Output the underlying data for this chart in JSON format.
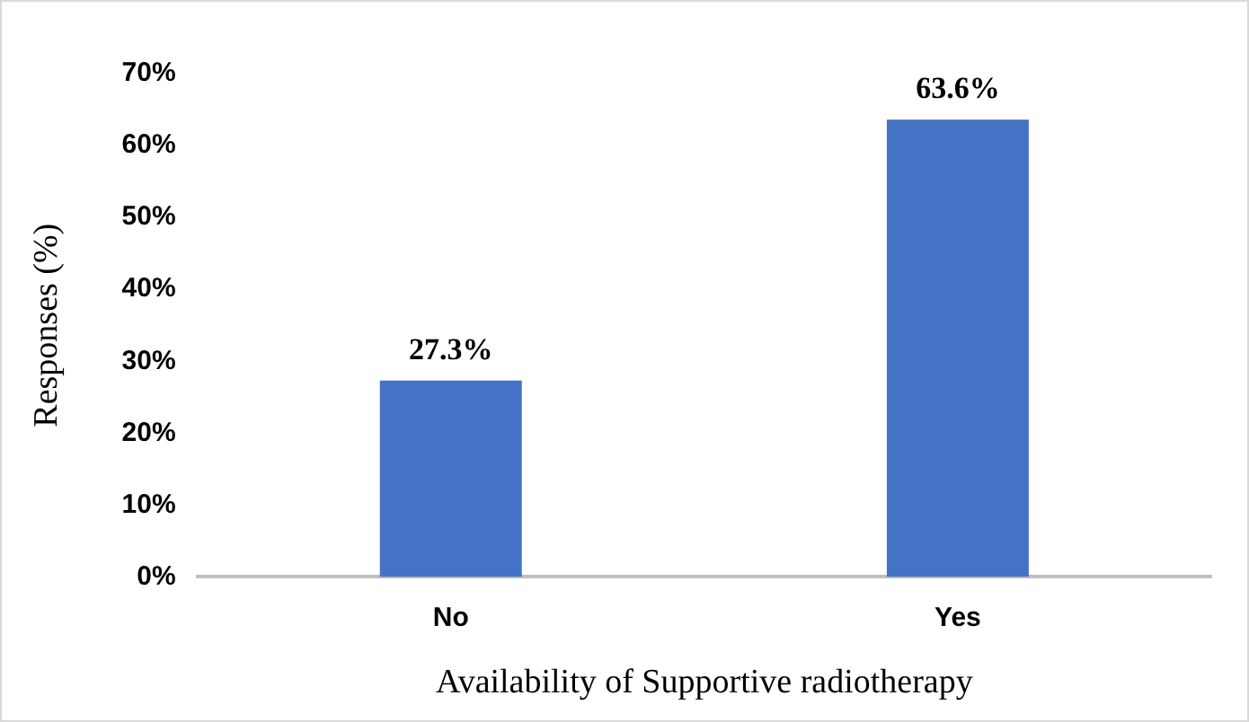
{
  "chart_data": {
    "type": "bar",
    "xlabel": "Availability of Supportive radiotherapy",
    "ylabel": "Responses (%)",
    "categories": [
      "No",
      "Yes"
    ],
    "values": [
      27.3,
      63.6
    ],
    "value_labels": [
      "27.3%",
      "63.6%"
    ],
    "color": "#4472c4",
    "ylim": [
      0,
      70
    ],
    "yticks": [
      {
        "value": 0,
        "label": "0%"
      },
      {
        "value": 10,
        "label": "10%"
      },
      {
        "value": 20,
        "label": "20%"
      },
      {
        "value": 30,
        "label": "30%"
      },
      {
        "value": 40,
        "label": "40%"
      },
      {
        "value": 50,
        "label": "50%"
      },
      {
        "value": 60,
        "label": "60%"
      },
      {
        "value": 70,
        "label": "70%"
      }
    ],
    "grid": false,
    "legend": false
  }
}
